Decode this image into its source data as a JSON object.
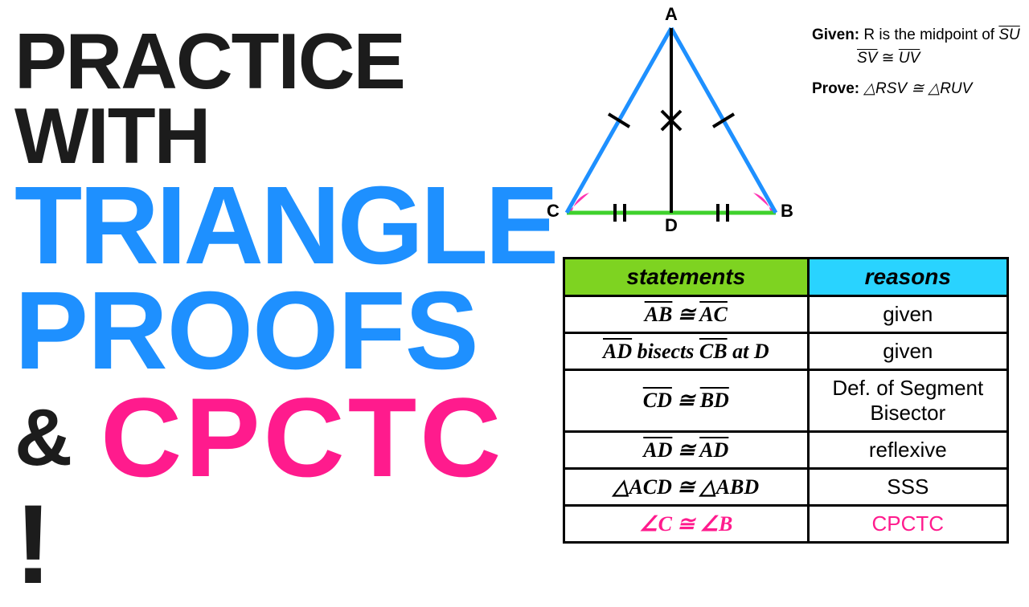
{
  "title": {
    "line1": "PRACTICE WITH",
    "line2": "TRIANGLE",
    "line3": "PROOFS",
    "amp": "&",
    "line4": "CPCTC",
    "bang": "!"
  },
  "triangle": {
    "vertices": {
      "A": "A",
      "B": "B",
      "C": "C",
      "D": "D"
    },
    "side_color": "#1e90ff",
    "base_color": "#3fd12c",
    "median_color": "#000000",
    "tick_color": "#000000",
    "angle_arc_color": "#ff34b3",
    "stroke_width": 4
  },
  "given": {
    "label_given": "Given:",
    "given_line1_a": "R is the midpoint of ",
    "given_line1_b": "SU",
    "given_line2_a": "SV",
    "given_line2_cong": " ≅ ",
    "given_line2_b": "UV",
    "label_prove": "Prove:",
    "prove_text": "△RSV ≅ △RUV"
  },
  "table": {
    "headers": {
      "statements": "statements",
      "reasons": "reasons"
    },
    "header_colors": {
      "statements": "#7ed321",
      "reasons": "#29d3ff"
    },
    "rows": [
      {
        "statement_html": "<span class='ov'>AB</span> ≅ <span class='ov'>AC</span>",
        "reason": "given"
      },
      {
        "statement_html": "<span class='ov'>AD</span> bisects <span class='ov'>CB</span> at <i>D</i>",
        "reason": "given"
      },
      {
        "statement_html": "<span class='ov'>CD</span> ≅ <span class='ov'>BD</span>",
        "reason": "Def. of Segment Bisector",
        "small": true
      },
      {
        "statement_html": "<span class='ov'>AD</span> ≅ <span class='ov'>AD</span>",
        "reason": "reflexive"
      },
      {
        "statement_html": "△<i>ACD</i> ≅ △<i>ABD</i>",
        "reason": "SSS"
      },
      {
        "statement_html": "∠<i>C</i> ≅ ∠<i>B</i>",
        "reason": "CPCTC",
        "pink": true
      }
    ]
  }
}
